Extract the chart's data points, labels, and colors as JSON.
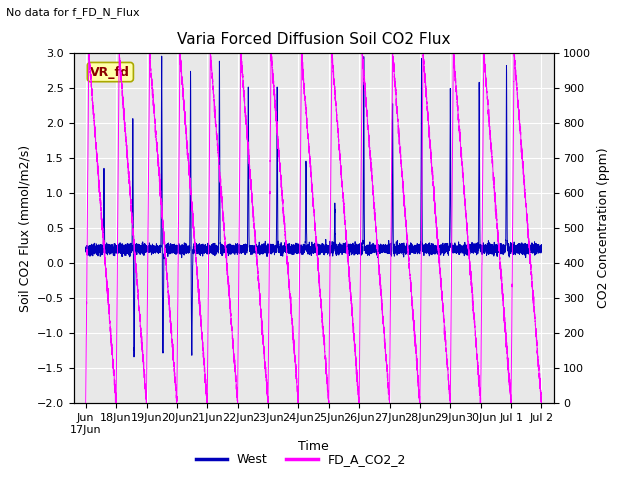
{
  "title": "Varia Forced Diffusion Soil CO2 Flux",
  "top_left_text": "No data for f_FD_N_Flux",
  "xlabel": "Time",
  "ylabel_left": "Soil CO2 Flux (mmol/m2/s)",
  "ylabel_right": "CO2 Concentration (ppm)",
  "ylim_left": [
    -2.0,
    3.0
  ],
  "ylim_right": [
    0,
    1000
  ],
  "bg_color": "#e8e8e8",
  "legend_entries": [
    "West",
    "FD_A_CO2_2"
  ],
  "legend_colors": [
    "#0000bb",
    "#ff00ff"
  ],
  "vr_fd_label": "VR_fd",
  "vr_fd_box_color": "#ffffaa",
  "vr_fd_text_color": "#8b0000",
  "grid_color": "#ffffff",
  "title_fontsize": 11,
  "axis_label_fontsize": 9,
  "tick_fontsize": 8
}
